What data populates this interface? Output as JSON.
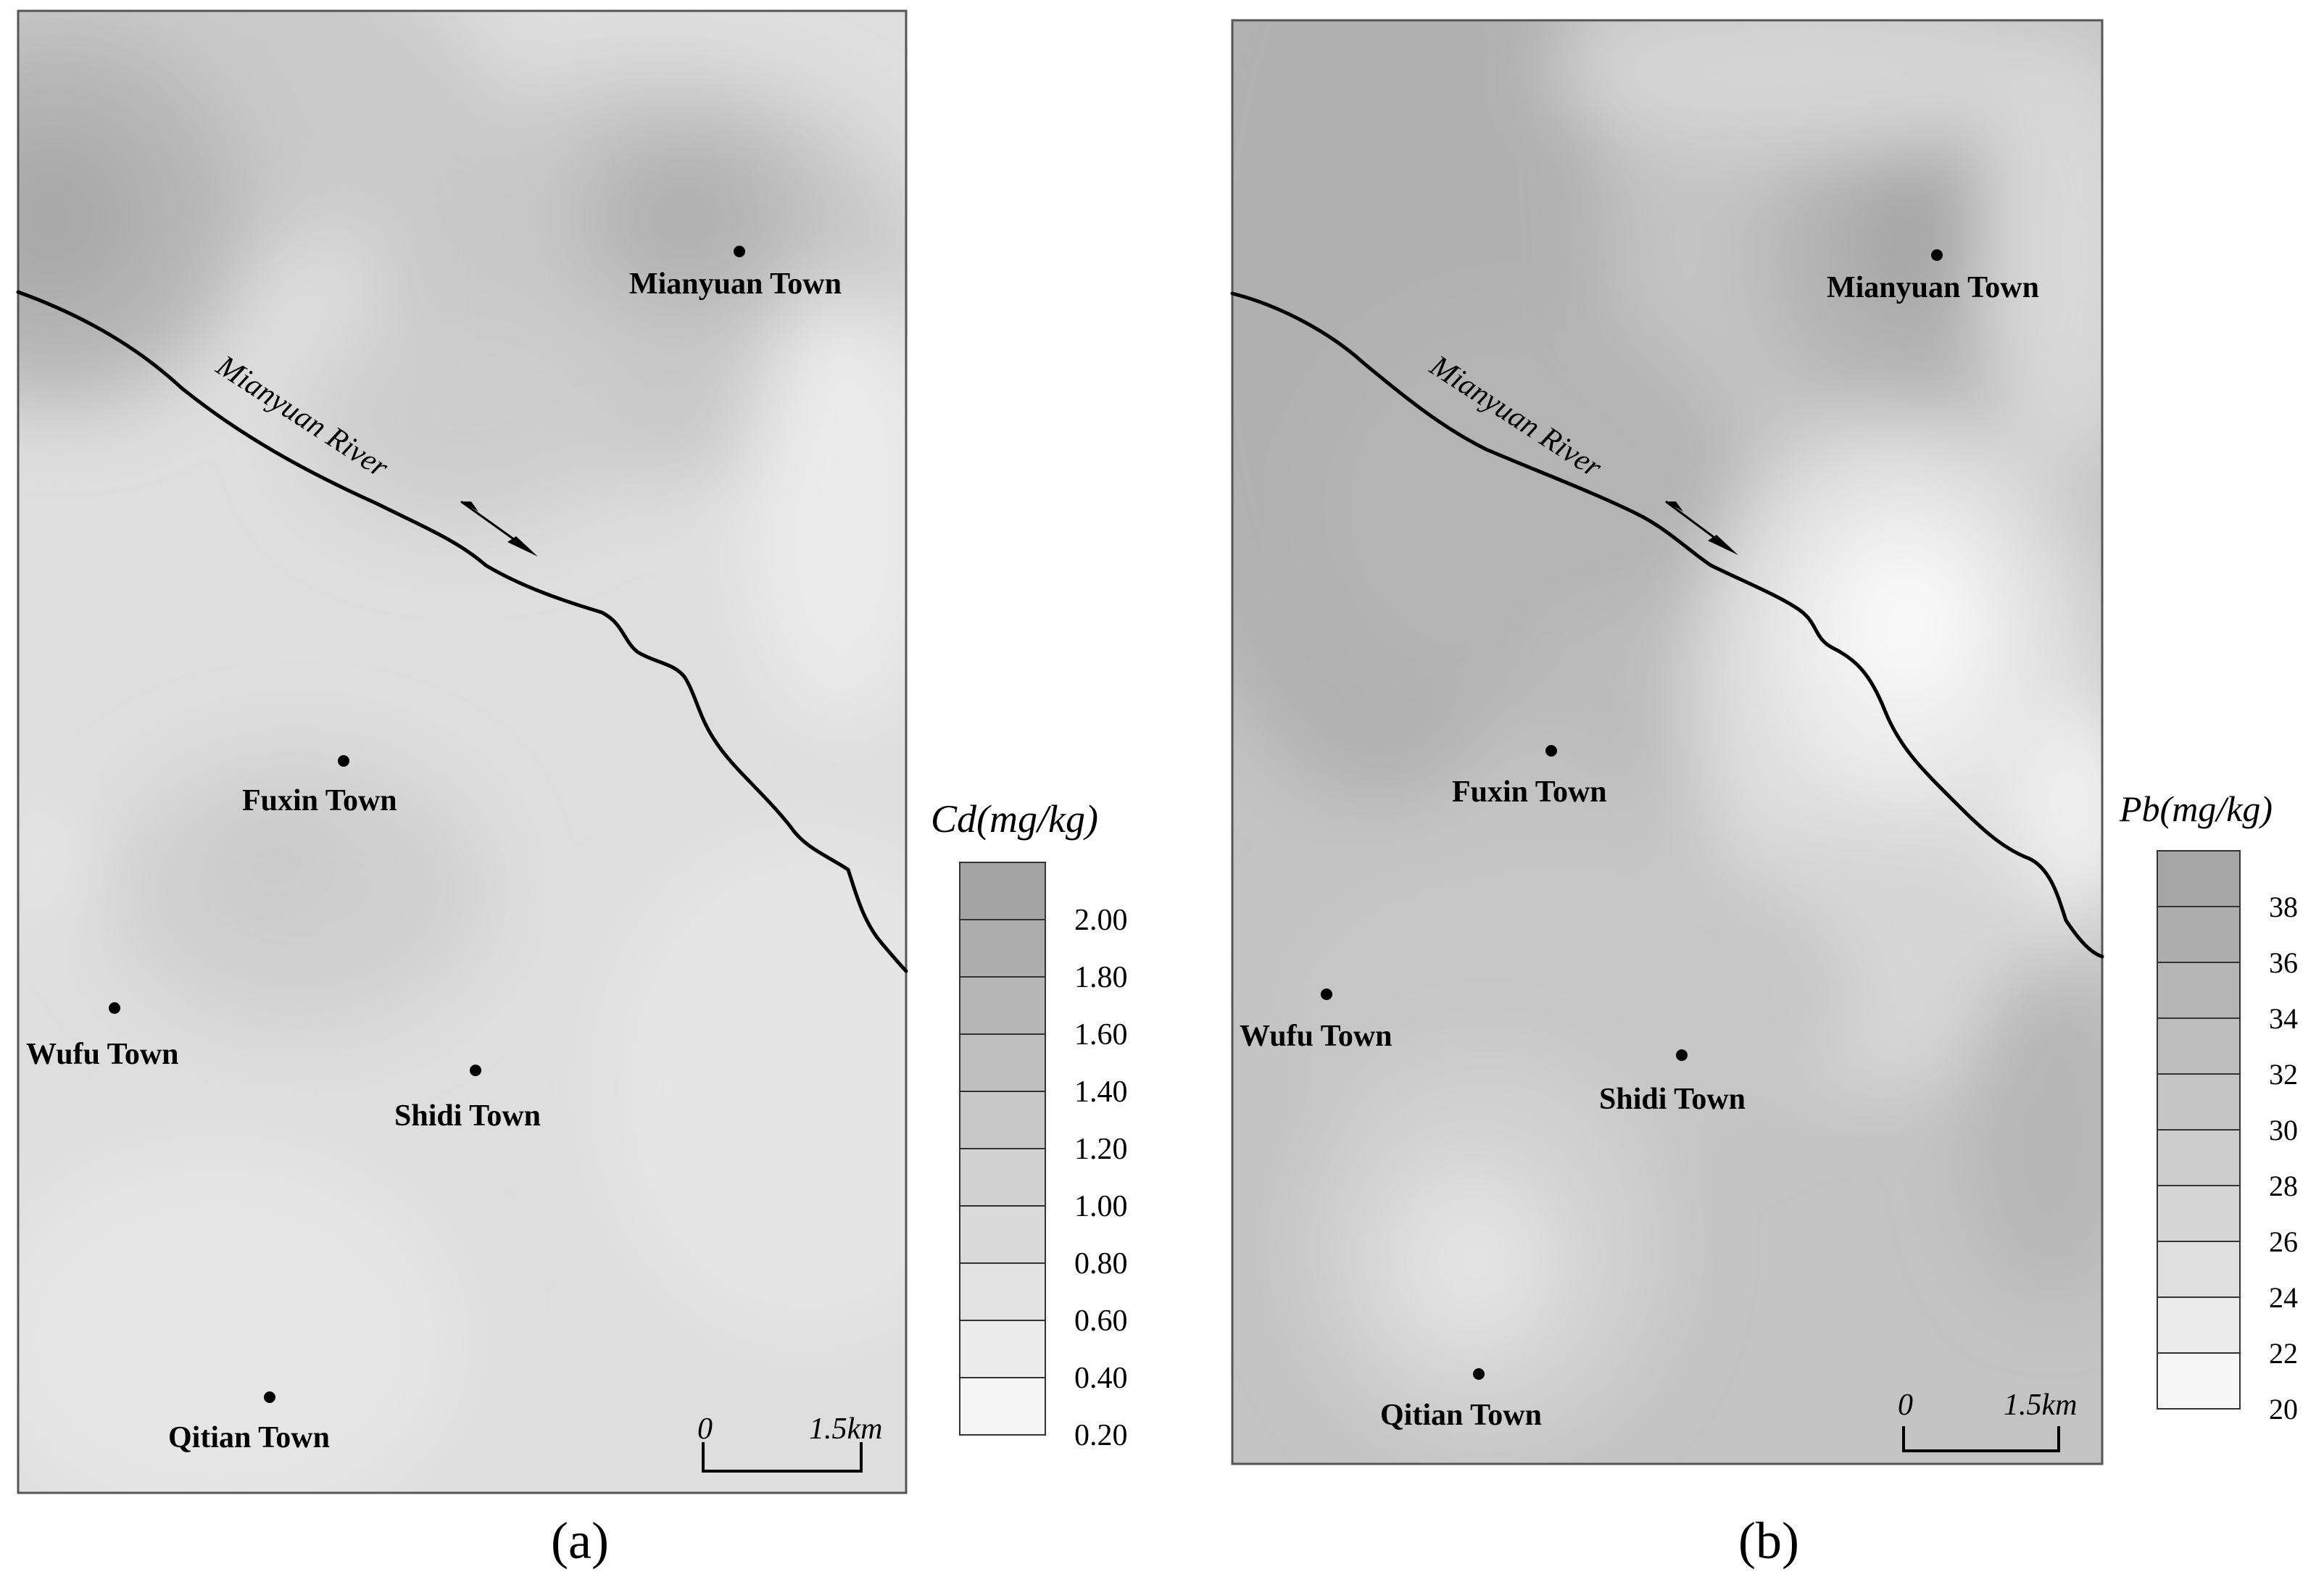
{
  "panels": [
    {
      "label": "(a)",
      "river_name": "Mianyuan River",
      "scale_bar": {
        "start": "0",
        "end": "1.5km"
      },
      "legend": {
        "title": "Cd(mg/kg)",
        "ticks": [
          "2.00",
          "1.80",
          "1.60",
          "1.40",
          "1.20",
          "1.00",
          "0.80",
          "0.60",
          "0.40",
          "0.20"
        ]
      },
      "towns": [
        {
          "name": "Mianyuan Town"
        },
        {
          "name": "Fuxin Town"
        },
        {
          "name": "Wufu Town"
        },
        {
          "name": "Shidi Town"
        },
        {
          "name": "Qitian Town"
        }
      ]
    },
    {
      "label": "(b)",
      "river_name": "Mianyuan River",
      "scale_bar": {
        "start": "0",
        "end": "1.5km"
      },
      "legend": {
        "title": "Pb(mg/kg)",
        "ticks": [
          "38",
          "36",
          "34",
          "32",
          "30",
          "28",
          "26",
          "24",
          "22",
          "20"
        ]
      },
      "towns": [
        {
          "name": "Mianyuan Town"
        },
        {
          "name": "Fuxin Town"
        },
        {
          "name": "Wufu Town"
        },
        {
          "name": "Shidi Town"
        },
        {
          "name": "Qitian Town"
        }
      ]
    }
  ],
  "colors": {
    "frame": "#555555",
    "river": "#000000",
    "map_base_a": "#dedede",
    "map_base_b": "#c3c3c3",
    "legend_swatches_a": [
      "#a4a4a4",
      "#adadad",
      "#b6b6b6",
      "#bfbfbf",
      "#c8c8c8",
      "#d1d1d1",
      "#dadada",
      "#e3e3e3",
      "#ececec",
      "#f5f5f5"
    ],
    "legend_swatches_b": [
      "#a5a5a5",
      "#adadad",
      "#b5b5b5",
      "#bdbdbd",
      "#c5c5c5",
      "#cdcdcd",
      "#d6d6d6",
      "#e0e0e0",
      "#ebebeb",
      "#f6f6f6"
    ]
  }
}
